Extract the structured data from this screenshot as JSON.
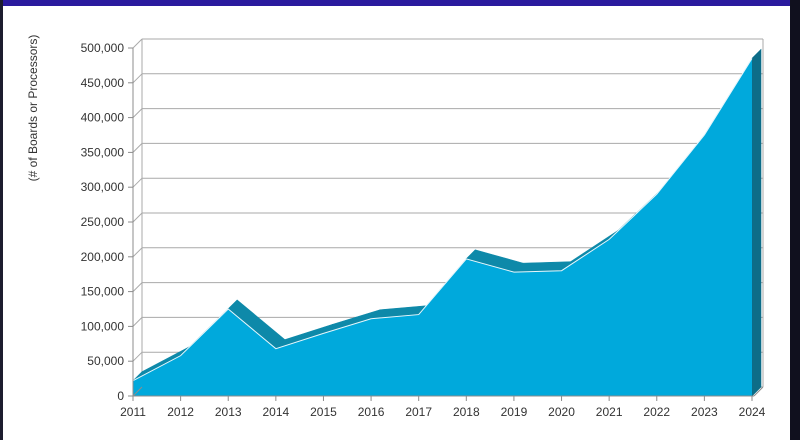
{
  "chart_data": {
    "type": "area",
    "title": "",
    "xlabel": "",
    "ylabel": "(# of Boards or Processors)",
    "categories": [
      "2011",
      "2012",
      "2013",
      "2014",
      "2015",
      "2016",
      "2017",
      "2018",
      "2019",
      "2020",
      "2021",
      "2022",
      "2023",
      "2024"
    ],
    "series": [
      {
        "name": "Boards or Processors",
        "values": [
          22000,
          58000,
          125000,
          68000,
          90000,
          111000,
          117000,
          197000,
          178000,
          180000,
          225000,
          290000,
          375000,
          485000
        ]
      }
    ],
    "ylim": [
      0,
      500000
    ],
    "yticks": [
      "0",
      "50,000",
      "100,000",
      "150,000",
      "200,000",
      "250,000",
      "300,000",
      "350,000",
      "400,000",
      "450,000",
      "500,000"
    ],
    "yticks_values": [
      0,
      50000,
      100000,
      150000,
      200000,
      250000,
      300000,
      350000,
      400000,
      450000,
      500000
    ],
    "grid": true,
    "colors": {
      "fill": "#00a9dc",
      "top": "#0e89a9",
      "side": "#0d6d88",
      "grid": "#a9a9a9",
      "axis": "#8c8c8c",
      "text": "#333333"
    }
  }
}
